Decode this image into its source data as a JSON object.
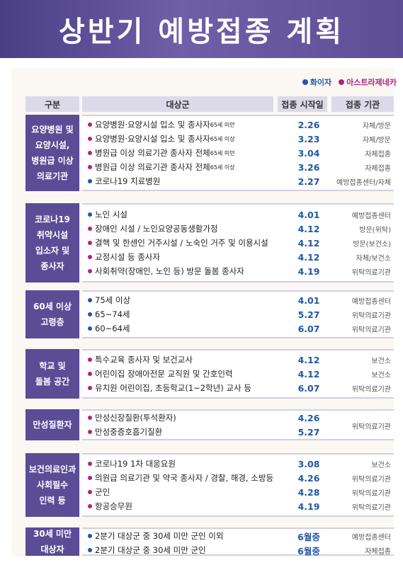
{
  "title": "상반기 예방접종 계획",
  "legend": [
    {
      "label": "화이자",
      "color": "#1f57a5"
    },
    {
      "label": "아스트라제네카",
      "color": "#b0237f"
    }
  ],
  "headers": {
    "category": "구분",
    "target": "대상군",
    "start": "접종 시작일",
    "org": "접종 기관"
  },
  "colors": {
    "banner": "#5a4d96",
    "date": "#1f57a5",
    "pfizer": "#1f57a5",
    "astrazeneca": "#b0237f"
  },
  "groups": [
    {
      "category": "요양병원 및\n요양시설,\n병원급 이상\n의료기관",
      "rows": [
        {
          "vaccine": "az",
          "target": "요양병원·요양시설 입소 및 종사자",
          "note": " 65세 미만",
          "date": "2.26",
          "org": "자체/방문"
        },
        {
          "vaccine": "az",
          "target": "요양병원·요양시설 입소 및 종사자",
          "note": " 65세 이상",
          "date": "3.23",
          "org": "자체/방문"
        },
        {
          "vaccine": "az",
          "target": "병원급 이상 의료기관 종사자 전체",
          "note": " 65세 미만",
          "date": "3.04",
          "org": "자체접종"
        },
        {
          "vaccine": "az",
          "target": "병원급 이상 의료기관 종사자 전체",
          "note": " 65세 이상",
          "date": "3.26",
          "org": "자체접종"
        },
        {
          "vaccine": "pf",
          "target": "코로나19 치료병원",
          "note": "",
          "date": "2.27",
          "org": "예방접종센터/자체"
        }
      ]
    },
    {
      "category": "코로나19\n취약시설\n입소자 및\n종사자",
      "rows": [
        {
          "vaccine": "pf",
          "target": "노인 시설",
          "note": "",
          "date": "4.01",
          "org": "예방접종센터"
        },
        {
          "vaccine": "az",
          "target": "장애인 시설 / 노인요양공동생활가정",
          "note": "",
          "date": "4.12",
          "org": "방문(위탁)"
        },
        {
          "vaccine": "az",
          "target": "결핵 및 한센인 거주시설 / 노숙인 거주 및 이용시설",
          "note": "",
          "date": "4.12",
          "org": "방문(보건소)"
        },
        {
          "vaccine": "az",
          "target": "교정시설 등 종사자",
          "note": "",
          "date": "4.12",
          "org": "자체/보건소"
        },
        {
          "vaccine": "az",
          "target": "사회취약(장애인, 노인 등) 방문 돌봄 종사자",
          "note": "",
          "date": "4.19",
          "org": "위탁의료기관"
        }
      ]
    },
    {
      "category": "60세 이상\n고령층",
      "rows": [
        {
          "vaccine": "pf",
          "target": "75세 이상",
          "note": "",
          "date": "4.01",
          "org": "예방접종센터"
        },
        {
          "vaccine": "pf",
          "target": "65~74세",
          "note": "",
          "date": "5.27",
          "org": "위탁의료기관"
        },
        {
          "vaccine": "pf",
          "target": "60~64세",
          "note": "",
          "date": "6.07",
          "org": "위탁의료기관"
        }
      ]
    },
    {
      "category": "학교 및\n돌봄 공간",
      "rows": [
        {
          "vaccine": "az",
          "target": "특수교육 종사자 및 보건교사",
          "note": "",
          "date": "4.12",
          "org": "보건소"
        },
        {
          "vaccine": "az",
          "target": "어린이집 장애아전문 교직원 및 간호인력",
          "note": "",
          "date": "4.12",
          "org": "보건소"
        },
        {
          "vaccine": "az",
          "target": "유치원 어린이집, 초등학교(1~2학년) 교사 등",
          "note": "",
          "date": "6.07",
          "org": "위탁의료기관"
        }
      ]
    },
    {
      "category": "만성질환자",
      "merged_org": "위탁의료기관",
      "rows": [
        {
          "vaccine": "az",
          "target": "만성신장질환(투석환자)",
          "note": "",
          "date": "4.26",
          "org": ""
        },
        {
          "vaccine": "az",
          "target": "만성중증호흡기질환",
          "note": "",
          "date": "5.27",
          "org": ""
        }
      ]
    },
    {
      "category": "보건의료인과\n사회필수\n인력 등",
      "rows": [
        {
          "vaccine": "az",
          "target": "코로나19 1차 대응요원",
          "note": "",
          "date": "3.08",
          "org": "보건소"
        },
        {
          "vaccine": "az",
          "target": "의원급 의료기관 및 약국 종사자 / 경찰, 해경, 소방등",
          "note": "",
          "date": "4.26",
          "org": "위탁의료기관"
        },
        {
          "vaccine": "az",
          "target": "군인",
          "note": "",
          "date": "4.28",
          "org": "위탁의료기관"
        },
        {
          "vaccine": "az",
          "target": "항공승무원",
          "note": "",
          "date": "4.19",
          "org": "위탁의료기관"
        }
      ]
    },
    {
      "category": "30세 미만\n대상자",
      "rows": [
        {
          "vaccine": "pf",
          "target": "2분기 대상군 중 30세 미만 군인 이외",
          "note": "",
          "date": "6월중",
          "org": "예방접종센터"
        },
        {
          "vaccine": "pf",
          "target": "2분기 대상군 중 30세 미만 군인",
          "note": "",
          "date": "6월중",
          "org": "자체접종"
        }
      ]
    }
  ]
}
